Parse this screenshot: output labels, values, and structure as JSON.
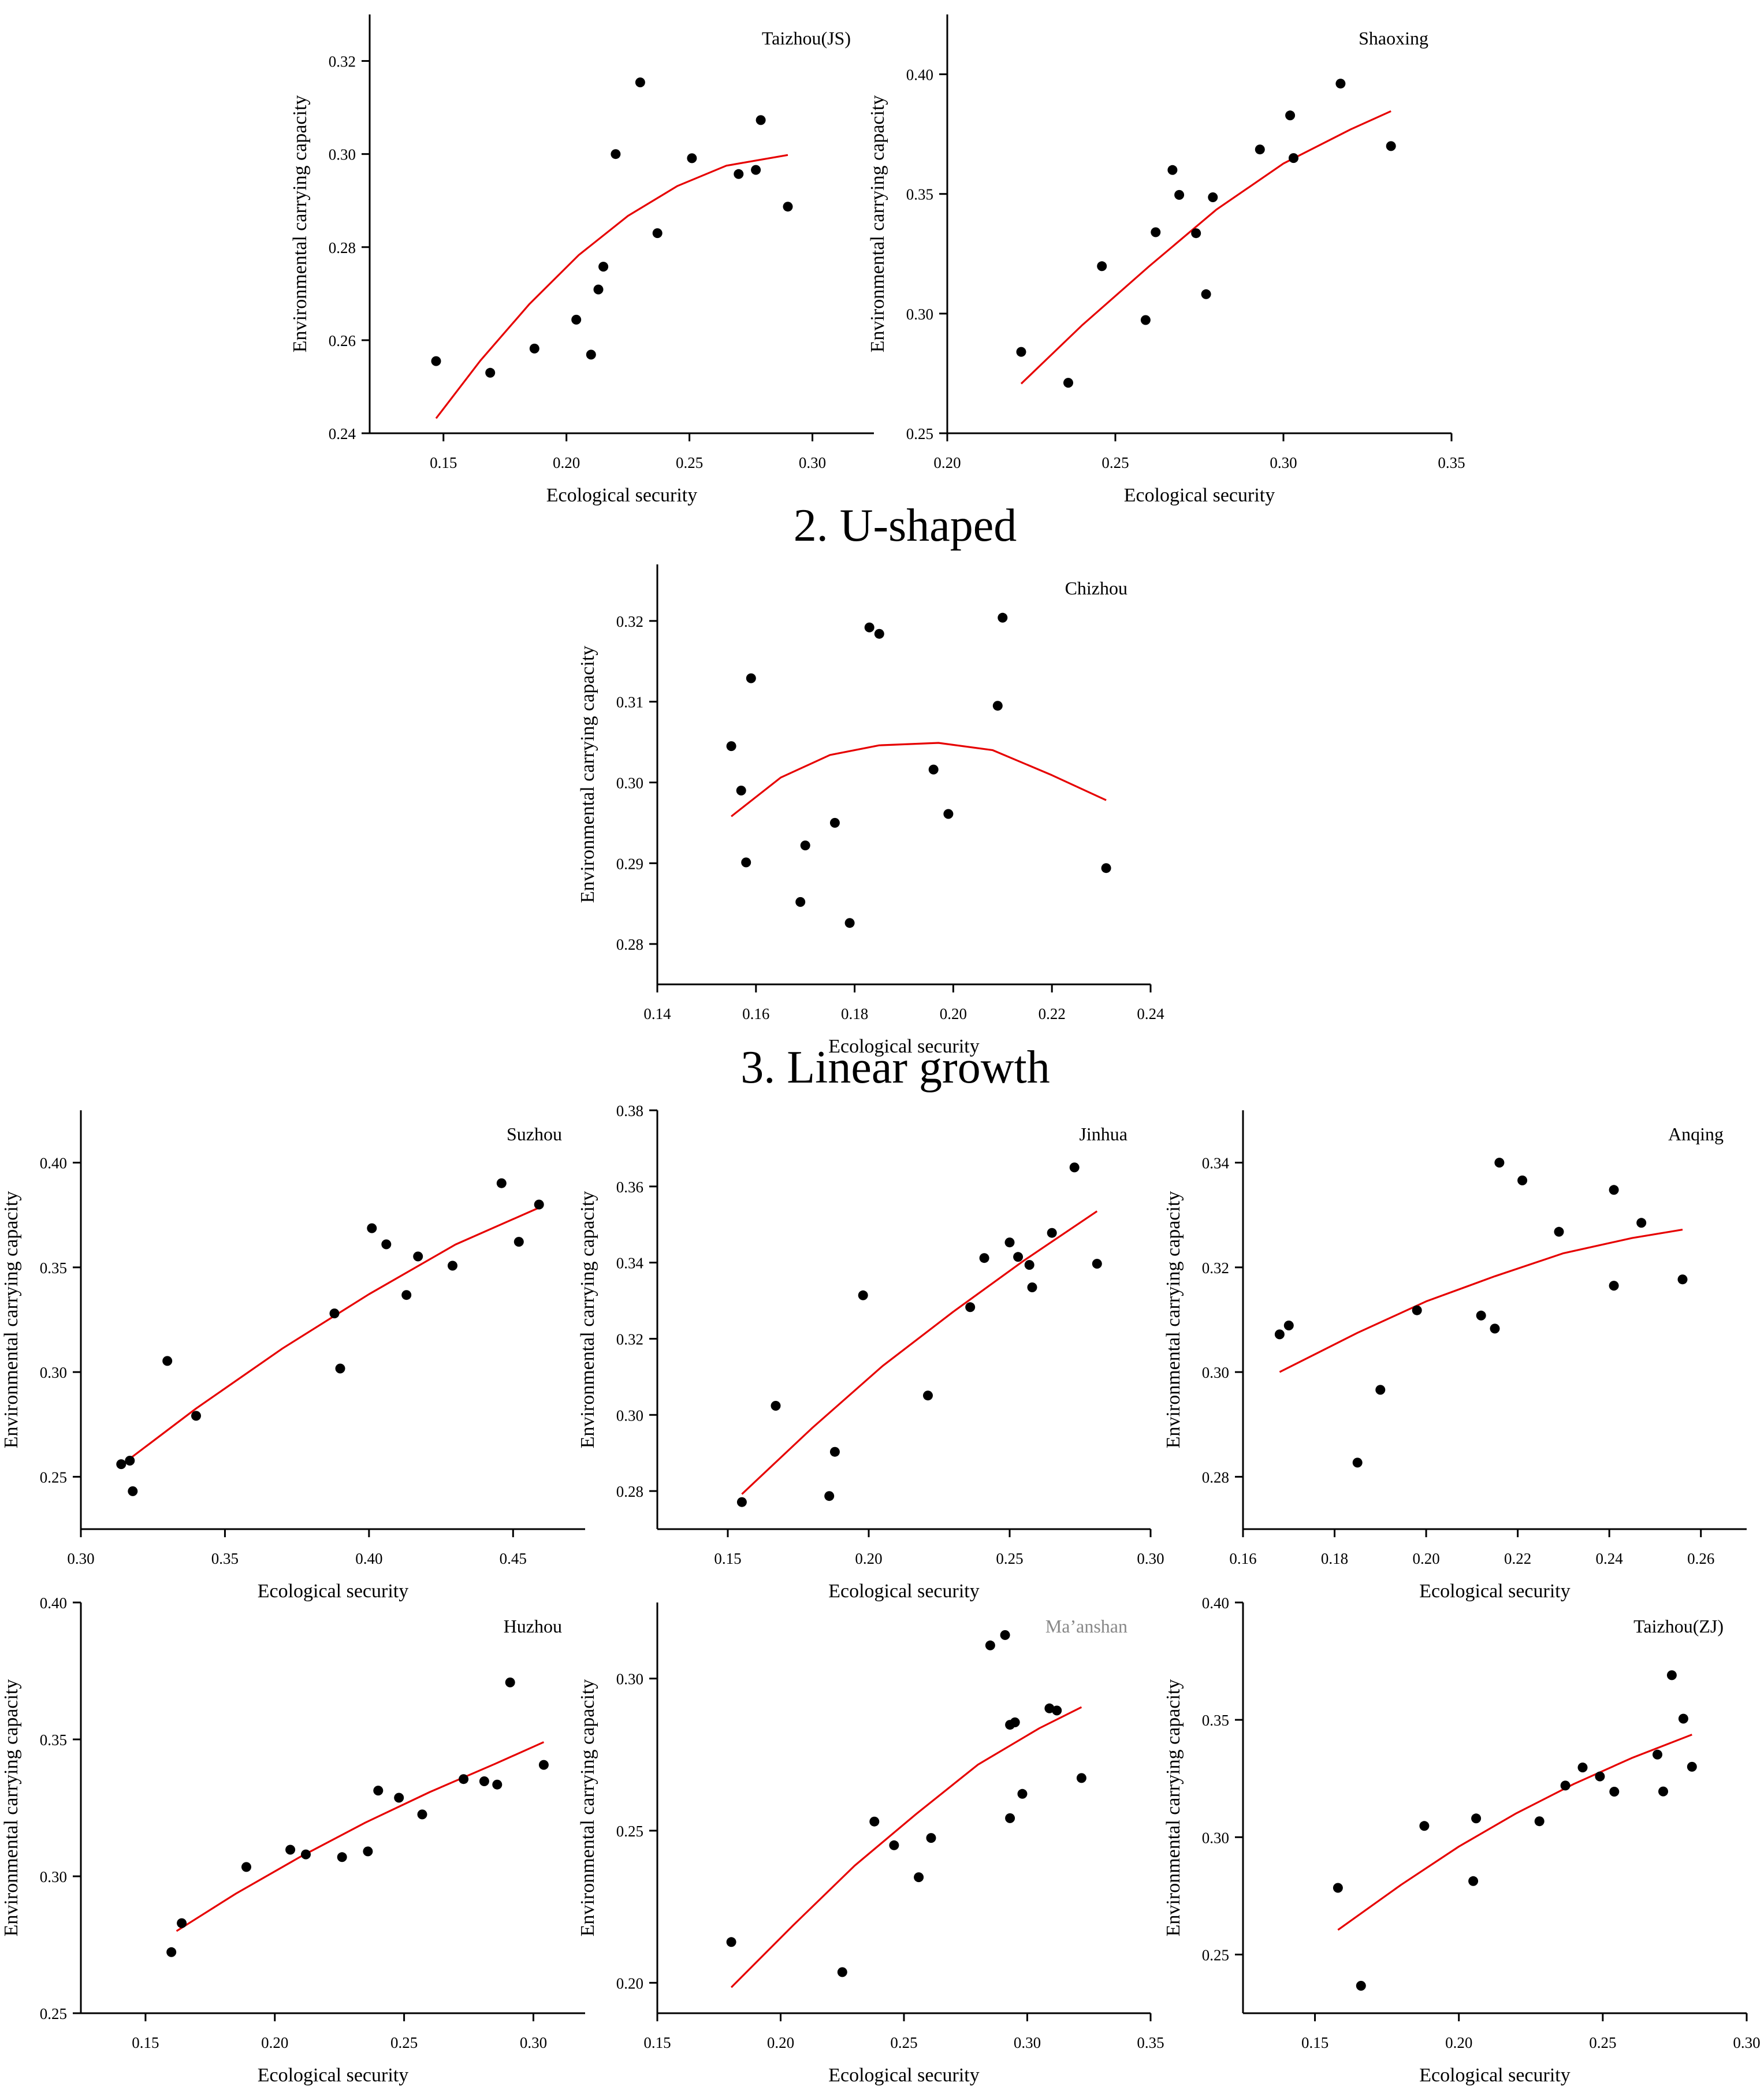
{
  "section_titles": [
    "2. U-shaped",
    "3. Linear growth"
  ],
  "colors": {
    "points": "#000000",
    "fit_curve": "#e60000",
    "axis": "#000000",
    "ghost_label": "#888888"
  },
  "chart_data": [
    {
      "id": "taizhou-js",
      "type": "scatter",
      "title": "Taizhou(JS)",
      "xlabel": "Ecological security",
      "ylabel": "Environmental carrying capacity",
      "xlim": [
        0.12,
        0.325
      ],
      "ylim": [
        0.24,
        0.33
      ],
      "xticks": [
        0.15,
        0.2,
        0.25,
        0.3
      ],
      "xtick_labels": [
        "0.15",
        "0.20",
        "0.25",
        "0.30"
      ],
      "yticks": [
        0.24,
        0.26,
        0.28,
        0.3,
        0.32
      ],
      "ytick_labels": [
        "0.24",
        "0.26",
        "0.28",
        "0.30",
        "0.32"
      ],
      "points": [
        [
          0.147,
          0.2555
        ],
        [
          0.169,
          0.253
        ],
        [
          0.187,
          0.2582
        ],
        [
          0.204,
          0.2644
        ],
        [
          0.21,
          0.2569
        ],
        [
          0.213,
          0.2709
        ],
        [
          0.215,
          0.2758
        ],
        [
          0.22,
          0.3
        ],
        [
          0.23,
          0.3154
        ],
        [
          0.237,
          0.283
        ],
        [
          0.251,
          0.2991
        ],
        [
          0.27,
          0.2957
        ],
        [
          0.277,
          0.2966
        ],
        [
          0.279,
          0.3073
        ],
        [
          0.29,
          0.2887
        ]
      ],
      "fit": [
        [
          0.147,
          0.2432
        ],
        [
          0.165,
          0.2556
        ],
        [
          0.185,
          0.2678
        ],
        [
          0.205,
          0.2783
        ],
        [
          0.225,
          0.2867
        ],
        [
          0.245,
          0.2931
        ],
        [
          0.265,
          0.2975
        ],
        [
          0.29,
          0.2998
        ]
      ]
    },
    {
      "id": "shaoxing",
      "type": "scatter",
      "title": "Shaoxing",
      "xlabel": "Ecological security",
      "ylabel": "Environmental carrying capacity",
      "xlim": [
        0.2,
        0.35
      ],
      "ylim": [
        0.25,
        0.425
      ],
      "xticks": [
        0.2,
        0.25,
        0.3,
        0.35
      ],
      "xtick_labels": [
        "0.20",
        "0.25",
        "0.30",
        "0.35"
      ],
      "yticks": [
        0.25,
        0.3,
        0.35,
        0.4
      ],
      "ytick_labels": [
        "0.25",
        "0.30",
        "0.35",
        "0.40"
      ],
      "points": [
        [
          0.222,
          0.284
        ],
        [
          0.236,
          0.2711
        ],
        [
          0.246,
          0.3198
        ],
        [
          0.259,
          0.2973
        ],
        [
          0.262,
          0.334
        ],
        [
          0.267,
          0.36
        ],
        [
          0.269,
          0.3496
        ],
        [
          0.274,
          0.3336
        ],
        [
          0.277,
          0.3081
        ],
        [
          0.279,
          0.3486
        ],
        [
          0.293,
          0.3686
        ],
        [
          0.302,
          0.3828
        ],
        [
          0.303,
          0.365
        ],
        [
          0.317,
          0.3961
        ],
        [
          0.332,
          0.37
        ]
      ],
      "fit": [
        [
          0.222,
          0.2707
        ],
        [
          0.24,
          0.295
        ],
        [
          0.26,
          0.3197
        ],
        [
          0.28,
          0.3434
        ],
        [
          0.3,
          0.3627
        ],
        [
          0.32,
          0.377
        ],
        [
          0.332,
          0.3846
        ]
      ]
    },
    {
      "id": "chizhou",
      "type": "scatter",
      "title": "Chizhou",
      "xlabel": "Ecological security",
      "ylabel": "Environmental carrying capacity",
      "xlim": [
        0.14,
        0.24
      ],
      "ylim": [
        0.275,
        0.327
      ],
      "xticks": [
        0.14,
        0.16,
        0.18,
        0.2,
        0.22,
        0.24
      ],
      "xtick_labels": [
        "0.14",
        "0.16",
        "0.18",
        "0.20",
        "0.22",
        "0.24"
      ],
      "yticks": [
        0.28,
        0.29,
        0.3,
        0.31,
        0.32
      ],
      "ytick_labels": [
        "0.28",
        "0.29",
        "0.30",
        "0.31",
        "0.32"
      ],
      "points": [
        [
          0.155,
          0.3045
        ],
        [
          0.157,
          0.299
        ],
        [
          0.158,
          0.2901
        ],
        [
          0.159,
          0.3129
        ],
        [
          0.169,
          0.2852
        ],
        [
          0.17,
          0.2922
        ],
        [
          0.176,
          0.295
        ],
        [
          0.179,
          0.2826
        ],
        [
          0.183,
          0.3192
        ],
        [
          0.185,
          0.3184
        ],
        [
          0.196,
          0.3016
        ],
        [
          0.199,
          0.2961
        ],
        [
          0.209,
          0.3095
        ],
        [
          0.21,
          0.3204
        ],
        [
          0.231,
          0.2894
        ]
      ],
      "fit": [
        [
          0.155,
          0.2958
        ],
        [
          0.165,
          0.3006
        ],
        [
          0.175,
          0.3034
        ],
        [
          0.185,
          0.3046
        ],
        [
          0.197,
          0.3049
        ],
        [
          0.208,
          0.304
        ],
        [
          0.22,
          0.3009
        ],
        [
          0.231,
          0.2978
        ]
      ]
    },
    {
      "id": "suzhou",
      "type": "scatter",
      "title": "Suzhou",
      "xlabel": "Ecological security",
      "ylabel": "Environmental carrying capacity",
      "xlim": [
        0.3,
        0.475
      ],
      "ylim": [
        0.225,
        0.425
      ],
      "xticks": [
        0.3,
        0.35,
        0.4,
        0.45
      ],
      "xtick_labels": [
        "0.30",
        "0.35",
        "0.40",
        "0.45"
      ],
      "yticks": [
        0.25,
        0.3,
        0.35,
        0.4
      ],
      "ytick_labels": [
        "0.25",
        "0.30",
        "0.35",
        "0.40"
      ],
      "points": [
        [
          0.314,
          0.256
        ],
        [
          0.317,
          0.2577
        ],
        [
          0.318,
          0.2431
        ],
        [
          0.33,
          0.3053
        ],
        [
          0.34,
          0.2791
        ],
        [
          0.388,
          0.328
        ],
        [
          0.39,
          0.3017
        ],
        [
          0.401,
          0.3687
        ],
        [
          0.406,
          0.361
        ],
        [
          0.413,
          0.3368
        ],
        [
          0.417,
          0.3552
        ],
        [
          0.429,
          0.3508
        ],
        [
          0.446,
          0.3902
        ],
        [
          0.452,
          0.3622
        ],
        [
          0.459,
          0.38
        ]
      ],
      "fit": [
        [
          0.314,
          0.2555
        ],
        [
          0.34,
          0.2826
        ],
        [
          0.37,
          0.3113
        ],
        [
          0.4,
          0.3372
        ],
        [
          0.43,
          0.3609
        ],
        [
          0.459,
          0.3785
        ]
      ]
    },
    {
      "id": "jinhua",
      "type": "scatter",
      "title": "Jinhua",
      "xlabel": "Ecological security",
      "ylabel": "Environmental carrying capacity",
      "xlim": [
        0.125,
        0.3
      ],
      "ylim": [
        0.27,
        0.38
      ],
      "xticks": [
        0.15,
        0.2,
        0.25,
        0.3
      ],
      "xtick_labels": [
        "0.15",
        "0.20",
        "0.25",
        "0.30"
      ],
      "yticks": [
        0.28,
        0.3,
        0.32,
        0.34,
        0.36,
        0.38
      ],
      "ytick_labels": [
        "0.28",
        "0.30",
        "0.32",
        "0.34",
        "0.36",
        "0.38"
      ],
      "points": [
        [
          0.155,
          0.2771
        ],
        [
          0.167,
          0.3024
        ],
        [
          0.186,
          0.2787
        ],
        [
          0.188,
          0.2903
        ],
        [
          0.198,
          0.3314
        ],
        [
          0.221,
          0.3051
        ],
        [
          0.236,
          0.3283
        ],
        [
          0.241,
          0.3412
        ],
        [
          0.25,
          0.3453
        ],
        [
          0.253,
          0.3415
        ],
        [
          0.257,
          0.3394
        ],
        [
          0.258,
          0.3335
        ],
        [
          0.265,
          0.3478
        ],
        [
          0.273,
          0.365
        ],
        [
          0.281,
          0.3397
        ]
      ],
      "fit": [
        [
          0.155,
          0.2792
        ],
        [
          0.18,
          0.2966
        ],
        [
          0.205,
          0.3129
        ],
        [
          0.23,
          0.3271
        ],
        [
          0.255,
          0.3405
        ],
        [
          0.281,
          0.3535
        ]
      ]
    },
    {
      "id": "anqing",
      "type": "scatter",
      "title": "Anqing",
      "xlabel": "Ecological security",
      "ylabel": "Environmental carrying capacity",
      "xlim": [
        0.16,
        0.27
      ],
      "ylim": [
        0.27,
        0.35
      ],
      "xticks": [
        0.16,
        0.18,
        0.2,
        0.22,
        0.24,
        0.26
      ],
      "xtick_labels": [
        "0.16",
        "0.18",
        "0.20",
        "0.22",
        "0.24",
        "0.26"
      ],
      "yticks": [
        0.28,
        0.3,
        0.32,
        0.34
      ],
      "ytick_labels": [
        "0.28",
        "0.30",
        "0.32",
        "0.34"
      ],
      "points": [
        [
          0.168,
          0.3072
        ],
        [
          0.17,
          0.3089
        ],
        [
          0.185,
          0.2827
        ],
        [
          0.19,
          0.2966
        ],
        [
          0.198,
          0.3118
        ],
        [
          0.212,
          0.3108
        ],
        [
          0.215,
          0.3083
        ],
        [
          0.216,
          0.34
        ],
        [
          0.221,
          0.3366
        ],
        [
          0.229,
          0.3268
        ],
        [
          0.241,
          0.3348
        ],
        [
          0.241,
          0.3165
        ],
        [
          0.247,
          0.3285
        ],
        [
          0.256,
          0.3177
        ]
      ],
      "fit": [
        [
          0.168,
          0.3
        ],
        [
          0.185,
          0.3075
        ],
        [
          0.2,
          0.3135
        ],
        [
          0.215,
          0.3183
        ],
        [
          0.23,
          0.3227
        ],
        [
          0.245,
          0.3256
        ],
        [
          0.256,
          0.3272
        ]
      ]
    },
    {
      "id": "huzhou",
      "type": "scatter",
      "title": "Huzhou",
      "xlabel": "Ecological security",
      "ylabel": "Environmental carrying capacity",
      "xlim": [
        0.125,
        0.32
      ],
      "ylim": [
        0.25,
        0.4
      ],
      "xticks": [
        0.15,
        0.2,
        0.25,
        0.3
      ],
      "xtick_labels": [
        "0.15",
        "0.20",
        "0.25",
        "0.30"
      ],
      "yticks": [
        0.25,
        0.3,
        0.35,
        0.4
      ],
      "ytick_labels": [
        "0.25",
        "0.30",
        "0.35",
        "0.40"
      ],
      "points": [
        [
          0.16,
          0.2723
        ],
        [
          0.164,
          0.2829
        ],
        [
          0.189,
          0.3034
        ],
        [
          0.206,
          0.3097
        ],
        [
          0.212,
          0.308
        ],
        [
          0.226,
          0.307
        ],
        [
          0.236,
          0.3091
        ],
        [
          0.24,
          0.3313
        ],
        [
          0.248,
          0.3287
        ],
        [
          0.257,
          0.3226
        ],
        [
          0.273,
          0.3355
        ],
        [
          0.281,
          0.3347
        ],
        [
          0.286,
          0.3335
        ],
        [
          0.291,
          0.3708
        ],
        [
          0.304,
          0.3407
        ]
      ],
      "fit": [
        [
          0.162,
          0.28
        ],
        [
          0.185,
          0.2937
        ],
        [
          0.21,
          0.3072
        ],
        [
          0.235,
          0.3196
        ],
        [
          0.26,
          0.3308
        ],
        [
          0.285,
          0.341
        ],
        [
          0.304,
          0.349
        ]
      ]
    },
    {
      "id": "maanshan",
      "type": "scatter",
      "title": "Ma’anshan",
      "xlabel": "Ecological security",
      "ylabel": "Environmental carrying capacity",
      "xlim": [
        0.15,
        0.35
      ],
      "ylim": [
        0.19,
        0.325
      ],
      "xticks": [
        0.15,
        0.2,
        0.25,
        0.3,
        0.35
      ],
      "xtick_labels": [
        "0.15",
        "0.20",
        "0.25",
        "0.30",
        "0.35"
      ],
      "yticks": [
        0.2,
        0.25,
        0.3
      ],
      "ytick_labels": [
        "0.20",
        "0.25",
        "0.30"
      ],
      "points": [
        [
          0.18,
          0.2134
        ],
        [
          0.225,
          0.2035
        ],
        [
          0.238,
          0.253
        ],
        [
          0.246,
          0.2452
        ],
        [
          0.256,
          0.2347
        ],
        [
          0.261,
          0.2476
        ],
        [
          0.285,
          0.3109
        ],
        [
          0.291,
          0.3143
        ],
        [
          0.293,
          0.2848
        ],
        [
          0.293,
          0.2541
        ],
        [
          0.295,
          0.2856
        ],
        [
          0.298,
          0.2621
        ],
        [
          0.309,
          0.2902
        ],
        [
          0.312,
          0.2895
        ],
        [
          0.322,
          0.2673
        ]
      ],
      "fit": [
        [
          0.18,
          0.1985
        ],
        [
          0.205,
          0.2188
        ],
        [
          0.23,
          0.2385
        ],
        [
          0.255,
          0.2555
        ],
        [
          0.28,
          0.2717
        ],
        [
          0.305,
          0.2837
        ],
        [
          0.322,
          0.2906
        ]
      ]
    },
    {
      "id": "taizhou-zj",
      "type": "scatter",
      "title": "Taizhou(ZJ)",
      "xlabel": "Ecological security",
      "ylabel": "Environmental carrying capacity",
      "xlim": [
        0.125,
        0.3
      ],
      "ylim": [
        0.225,
        0.4
      ],
      "xticks": [
        0.15,
        0.2,
        0.25,
        0.3
      ],
      "xtick_labels": [
        "0.15",
        "0.20",
        "0.25",
        "0.30"
      ],
      "yticks": [
        0.25,
        0.3,
        0.35,
        0.4
      ],
      "ytick_labels": [
        "0.25",
        "0.30",
        "0.35",
        "0.40"
      ],
      "points": [
        [
          0.158,
          0.2784
        ],
        [
          0.166,
          0.2367
        ],
        [
          0.188,
          0.3048
        ],
        [
          0.205,
          0.2813
        ],
        [
          0.206,
          0.308
        ],
        [
          0.228,
          0.3068
        ],
        [
          0.237,
          0.322
        ],
        [
          0.243,
          0.3297
        ],
        [
          0.249,
          0.3259
        ],
        [
          0.254,
          0.3194
        ],
        [
          0.269,
          0.3352
        ],
        [
          0.271,
          0.3195
        ],
        [
          0.274,
          0.369
        ],
        [
          0.278,
          0.3505
        ],
        [
          0.281,
          0.33
        ]
      ],
      "fit": [
        [
          0.158,
          0.2605
        ],
        [
          0.18,
          0.2798
        ],
        [
          0.2,
          0.296
        ],
        [
          0.22,
          0.3102
        ],
        [
          0.24,
          0.3227
        ],
        [
          0.26,
          0.3337
        ],
        [
          0.281,
          0.3437
        ]
      ]
    }
  ]
}
